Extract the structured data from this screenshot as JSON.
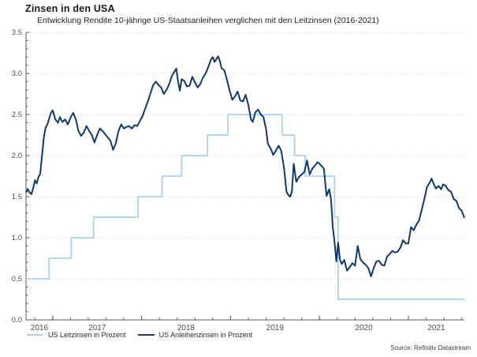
{
  "page": {
    "title": "Zinsen in den USA",
    "subtitle": "Entwicklung Rendite 10-jährige US-Staatsanleihen verglichen mit den Leitzinsen (2016-2021)",
    "source": "Source: Refinitiv Datastream"
  },
  "chart_data": {
    "type": "line",
    "title": "Zinsen in den USA",
    "subtitle": "Entwicklung Rendite 10-jährige US-Staatsanleihen verglichen mit den Leitzinsen (2016-2021)",
    "xlabel": "",
    "ylabel": "Prozent",
    "x_axis": {
      "min": 2016.7,
      "max": 2021.63,
      "year_labels": [
        "2016",
        "2017",
        "2018",
        "2019",
        "2020",
        "2021"
      ]
    },
    "y_axis": {
      "min": 0.0,
      "max": 3.5,
      "step": 0.5,
      "labels": [
        "0.0",
        "0.5",
        "1.0",
        "1.5",
        "2.0",
        "2.5",
        "3.0",
        "3.5"
      ]
    },
    "grid": "horizontal dotted lines at every 0.5",
    "legend_position": "bottom-left",
    "colors": {
      "leitzins": "#a9d2f2",
      "anleihen": "#10386b",
      "gridline": "#cccccc",
      "axis": "#595959",
      "tick_text": "#4d4d4d"
    },
    "series": [
      {
        "name": "US Leitzinsen in Prozent",
        "color": "#a9d2f2",
        "line_width": 1.8,
        "interpolation": "step-after",
        "points": [
          [
            2016.7,
            0.5
          ],
          [
            2016.96,
            0.75
          ],
          [
            2017.21,
            1.0
          ],
          [
            2017.46,
            1.25
          ],
          [
            2017.96,
            1.5
          ],
          [
            2018.23,
            1.75
          ],
          [
            2018.45,
            2.0
          ],
          [
            2018.74,
            2.25
          ],
          [
            2018.97,
            2.5
          ],
          [
            2019.58,
            2.25
          ],
          [
            2019.72,
            2.0
          ],
          [
            2019.84,
            1.75
          ],
          [
            2020.17,
            1.25
          ],
          [
            2020.21,
            0.25
          ],
          [
            2021.63,
            0.25
          ]
        ]
      },
      {
        "name": "US Anleihenzinsen in Prozent",
        "color": "#10386b",
        "line_width": 2,
        "interpolation": "linear",
        "points": [
          [
            2016.7,
            1.55
          ],
          [
            2016.72,
            1.59
          ],
          [
            2016.74,
            1.55
          ],
          [
            2016.76,
            1.53
          ],
          [
            2016.78,
            1.6
          ],
          [
            2016.8,
            1.7
          ],
          [
            2016.82,
            1.66
          ],
          [
            2016.84,
            1.74
          ],
          [
            2016.86,
            1.78
          ],
          [
            2016.88,
            2.0
          ],
          [
            2016.9,
            2.22
          ],
          [
            2016.92,
            2.34
          ],
          [
            2016.94,
            2.38
          ],
          [
            2016.96,
            2.45
          ],
          [
            2016.98,
            2.52
          ],
          [
            2017.0,
            2.55
          ],
          [
            2017.03,
            2.44
          ],
          [
            2017.06,
            2.4
          ],
          [
            2017.08,
            2.47
          ],
          [
            2017.11,
            2.41
          ],
          [
            2017.14,
            2.44
          ],
          [
            2017.17,
            2.38
          ],
          [
            2017.2,
            2.46
          ],
          [
            2017.23,
            2.52
          ],
          [
            2017.26,
            2.44
          ],
          [
            2017.29,
            2.3
          ],
          [
            2017.32,
            2.24
          ],
          [
            2017.35,
            2.28
          ],
          [
            2017.38,
            2.36
          ],
          [
            2017.41,
            2.3
          ],
          [
            2017.44,
            2.25
          ],
          [
            2017.47,
            2.16
          ],
          [
            2017.5,
            2.25
          ],
          [
            2017.53,
            2.33
          ],
          [
            2017.56,
            2.3
          ],
          [
            2017.59,
            2.26
          ],
          [
            2017.62,
            2.22
          ],
          [
            2017.65,
            2.18
          ],
          [
            2017.68,
            2.07
          ],
          [
            2017.71,
            2.15
          ],
          [
            2017.74,
            2.3
          ],
          [
            2017.77,
            2.38
          ],
          [
            2017.8,
            2.33
          ],
          [
            2017.83,
            2.35
          ],
          [
            2017.86,
            2.36
          ],
          [
            2017.89,
            2.33
          ],
          [
            2017.92,
            2.37
          ],
          [
            2017.95,
            2.36
          ],
          [
            2017.98,
            2.42
          ],
          [
            2018.01,
            2.48
          ],
          [
            2018.04,
            2.57
          ],
          [
            2018.07,
            2.66
          ],
          [
            2018.1,
            2.76
          ],
          [
            2018.13,
            2.86
          ],
          [
            2018.16,
            2.9
          ],
          [
            2018.19,
            2.86
          ],
          [
            2018.22,
            2.83
          ],
          [
            2018.25,
            2.75
          ],
          [
            2018.28,
            2.8
          ],
          [
            2018.31,
            2.87
          ],
          [
            2018.34,
            2.97
          ],
          [
            2018.37,
            3.02
          ],
          [
            2018.39,
            3.06
          ],
          [
            2018.41,
            2.9
          ],
          [
            2018.43,
            2.79
          ],
          [
            2018.45,
            2.93
          ],
          [
            2018.48,
            2.91
          ],
          [
            2018.51,
            2.84
          ],
          [
            2018.54,
            2.85
          ],
          [
            2018.57,
            2.96
          ],
          [
            2018.6,
            2.89
          ],
          [
            2018.63,
            2.83
          ],
          [
            2018.66,
            2.87
          ],
          [
            2018.69,
            2.95
          ],
          [
            2018.72,
            3.0
          ],
          [
            2018.75,
            3.08
          ],
          [
            2018.78,
            3.17
          ],
          [
            2018.8,
            3.2
          ],
          [
            2018.82,
            3.14
          ],
          [
            2018.84,
            3.17
          ],
          [
            2018.86,
            3.21
          ],
          [
            2018.88,
            3.15
          ],
          [
            2018.9,
            3.06
          ],
          [
            2018.93,
            3.04
          ],
          [
            2018.96,
            2.92
          ],
          [
            2018.99,
            2.79
          ],
          [
            2019.02,
            2.68
          ],
          [
            2019.05,
            2.72
          ],
          [
            2019.08,
            2.78
          ],
          [
            2019.11,
            2.67
          ],
          [
            2019.14,
            2.66
          ],
          [
            2019.17,
            2.74
          ],
          [
            2019.2,
            2.62
          ],
          [
            2019.23,
            2.44
          ],
          [
            2019.25,
            2.41
          ],
          [
            2019.28,
            2.53
          ],
          [
            2019.31,
            2.56
          ],
          [
            2019.34,
            2.5
          ],
          [
            2019.37,
            2.47
          ],
          [
            2019.4,
            2.32
          ],
          [
            2019.42,
            2.14
          ],
          [
            2019.45,
            2.09
          ],
          [
            2019.48,
            2.01
          ],
          [
            2019.51,
            2.06
          ],
          [
            2019.54,
            2.12
          ],
          [
            2019.57,
            2.06
          ],
          [
            2019.6,
            1.86
          ],
          [
            2019.63,
            1.56
          ],
          [
            2019.65,
            1.52
          ],
          [
            2019.67,
            1.5
          ],
          [
            2019.69,
            1.56
          ],
          [
            2019.71,
            1.9
          ],
          [
            2019.74,
            1.68
          ],
          [
            2019.77,
            1.74
          ],
          [
            2019.8,
            1.77
          ],
          [
            2019.83,
            1.8
          ],
          [
            2019.86,
            1.94
          ],
          [
            2019.89,
            1.77
          ],
          [
            2019.92,
            1.84
          ],
          [
            2019.95,
            1.88
          ],
          [
            2019.98,
            1.92
          ],
          [
            2020.02,
            1.88
          ],
          [
            2020.05,
            1.84
          ],
          [
            2020.08,
            1.51
          ],
          [
            2020.11,
            1.59
          ],
          [
            2020.13,
            1.47
          ],
          [
            2020.15,
            1.13
          ],
          [
            2020.17,
            0.95
          ],
          [
            2020.19,
            0.71
          ],
          [
            2020.21,
            0.94
          ],
          [
            2020.23,
            0.74
          ],
          [
            2020.25,
            0.68
          ],
          [
            2020.28,
            0.73
          ],
          [
            2020.31,
            0.6
          ],
          [
            2020.34,
            0.64
          ],
          [
            2020.37,
            0.69
          ],
          [
            2020.4,
            0.66
          ],
          [
            2020.43,
            0.9
          ],
          [
            2020.46,
            0.74
          ],
          [
            2020.49,
            0.7
          ],
          [
            2020.52,
            0.67
          ],
          [
            2020.55,
            0.63
          ],
          [
            2020.58,
            0.53
          ],
          [
            2020.61,
            0.63
          ],
          [
            2020.64,
            0.71
          ],
          [
            2020.67,
            0.72
          ],
          [
            2020.7,
            0.67
          ],
          [
            2020.73,
            0.66
          ],
          [
            2020.76,
            0.77
          ],
          [
            2020.79,
            0.8
          ],
          [
            2020.82,
            0.84
          ],
          [
            2020.85,
            0.82
          ],
          [
            2020.88,
            0.83
          ],
          [
            2020.91,
            0.88
          ],
          [
            2020.94,
            0.97
          ],
          [
            2020.97,
            0.93
          ],
          [
            2021.0,
            0.93
          ],
          [
            2021.03,
            1.13
          ],
          [
            2021.06,
            1.09
          ],
          [
            2021.09,
            1.16
          ],
          [
            2021.12,
            1.21
          ],
          [
            2021.15,
            1.34
          ],
          [
            2021.18,
            1.47
          ],
          [
            2021.21,
            1.62
          ],
          [
            2021.24,
            1.67
          ],
          [
            2021.26,
            1.72
          ],
          [
            2021.29,
            1.64
          ],
          [
            2021.31,
            1.6
          ],
          [
            2021.34,
            1.63
          ],
          [
            2021.37,
            1.59
          ],
          [
            2021.39,
            1.65
          ],
          [
            2021.42,
            1.63
          ],
          [
            2021.45,
            1.58
          ],
          [
            2021.48,
            1.56
          ],
          [
            2021.51,
            1.47
          ],
          [
            2021.54,
            1.45
          ],
          [
            2021.57,
            1.36
          ],
          [
            2021.6,
            1.33
          ],
          [
            2021.63,
            1.24
          ]
        ]
      }
    ]
  }
}
